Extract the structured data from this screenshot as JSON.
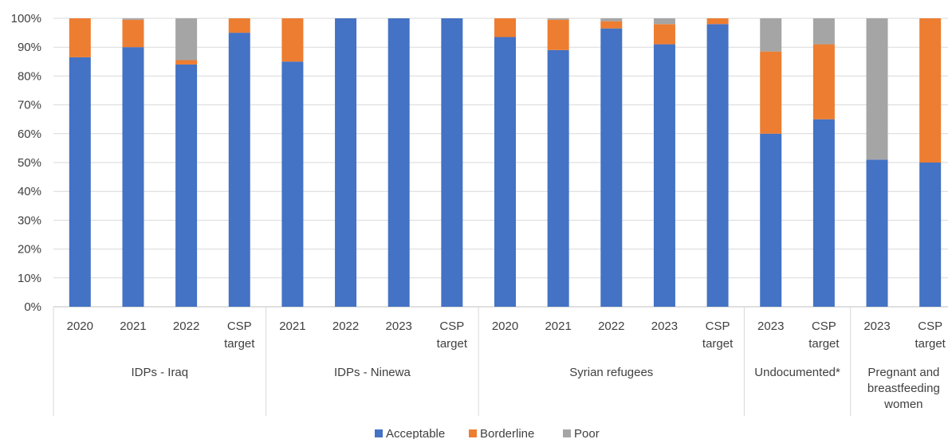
{
  "chart_data": {
    "type": "bar",
    "stacked": true,
    "title": "",
    "xlabel": "",
    "ylabel": "",
    "ylim": [
      0,
      100
    ],
    "y_ticks": [
      "0%",
      "10%",
      "20%",
      "30%",
      "40%",
      "50%",
      "60%",
      "70%",
      "80%",
      "90%",
      "100%"
    ],
    "grid": "horizontal",
    "legend_position": "bottom",
    "categories": [
      "2020",
      "2021",
      "2022",
      "CSP target",
      "2021",
      "2022",
      "2023",
      "CSP target",
      "2020",
      "2021",
      "2022",
      "2023",
      "CSP target",
      "2023",
      "CSP target",
      "2023",
      "CSP target"
    ],
    "groups": [
      {
        "label": "IDPs - Iraq",
        "count": 4
      },
      {
        "label": "IDPs - Ninewa",
        "count": 4
      },
      {
        "label": "Syrian refugees",
        "count": 5
      },
      {
        "label": "Undocumented*",
        "count": 2
      },
      {
        "label": "Pregnant and breastfeeding women",
        "count": 2
      }
    ],
    "series": [
      {
        "name": "Acceptable",
        "color": "#4472C4",
        "values": [
          86.5,
          90,
          84,
          95,
          85,
          100,
          100,
          100,
          93.5,
          89,
          96.5,
          91,
          98,
          60,
          65,
          51,
          50
        ]
      },
      {
        "name": "Borderline",
        "color": "#ED7D31",
        "values": [
          13.5,
          9.5,
          1.5,
          5,
          15,
          0,
          0,
          0,
          6.5,
          10.5,
          2.5,
          7,
          2,
          28.5,
          26,
          0,
          50
        ]
      },
      {
        "name": "Poor",
        "color": "#A5A5A5",
        "values": [
          0,
          0.5,
          14.5,
          0,
          0,
          0,
          0,
          0,
          0,
          0.5,
          1,
          2,
          0,
          11.5,
          9,
          49,
          0
        ]
      }
    ]
  }
}
